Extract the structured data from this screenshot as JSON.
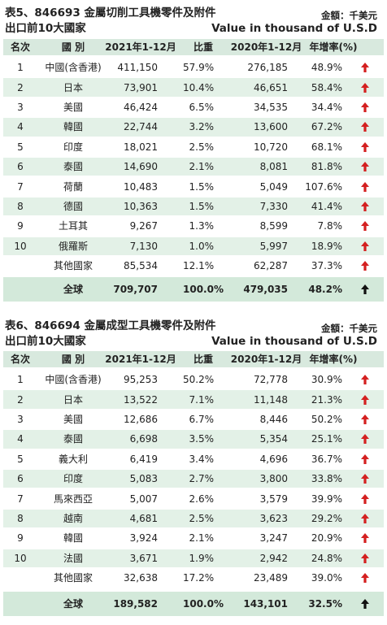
{
  "tables": [
    {
      "title": "表5、846693 金屬切削工具機零件及附件",
      "unit": "金額：千美元",
      "subtitle": "出口前10大國家",
      "unit_en": "Value in thousand of U.S.D",
      "columns": [
        "名次",
        "國 別",
        "2021年1-12月",
        "比重",
        "2020年1-12月",
        "年增率(%)"
      ],
      "rows": [
        {
          "rank": "1",
          "country": "中國(含香港)",
          "cells": [
            "411,150",
            "57.9%",
            "276,185",
            "48.9%"
          ]
        },
        {
          "rank": "2",
          "country": "日本",
          "cells": [
            "73,901",
            "10.4%",
            "46,651",
            "58.4%"
          ]
        },
        {
          "rank": "3",
          "country": "美國",
          "cells": [
            "46,424",
            "6.5%",
            "34,535",
            "34.4%"
          ]
        },
        {
          "rank": "4",
          "country": "韓國",
          "cells": [
            "22,744",
            "3.2%",
            "13,600",
            "67.2%"
          ]
        },
        {
          "rank": "5",
          "country": "印度",
          "cells": [
            "18,021",
            "2.5%",
            "10,720",
            "68.1%"
          ]
        },
        {
          "rank": "6",
          "country": "泰國",
          "cells": [
            "14,690",
            "2.1%",
            "8,081",
            "81.8%"
          ]
        },
        {
          "rank": "7",
          "country": "荷蘭",
          "cells": [
            "10,483",
            "1.5%",
            "5,049",
            "107.6%"
          ]
        },
        {
          "rank": "8",
          "country": "德國",
          "cells": [
            "10,363",
            "1.5%",
            "7,330",
            "41.4%"
          ]
        },
        {
          "rank": "9",
          "country": "土耳其",
          "cells": [
            "9,267",
            "1.3%",
            "8,599",
            "7.8%"
          ]
        },
        {
          "rank": "10",
          "country": "俄羅斯",
          "cells": [
            "7,130",
            "1.0%",
            "5,997",
            "18.9%"
          ]
        },
        {
          "country": "其他國家",
          "cells": [
            "85,534",
            "12.1%",
            "62,287",
            "37.3%"
          ]
        }
      ],
      "total": {
        "country": "全球",
        "cells": [
          "709,707",
          "100.0%",
          "479,035",
          "48.2%"
        ]
      }
    },
    {
      "title": "表6、846694 金屬成型工具機零件及附件",
      "unit": "金額：千美元",
      "subtitle": "出口前10大國家",
      "unit_en": "Value in thousand of U.S.D",
      "columns": [
        "名次",
        "國 別",
        "2021年1-12月",
        "比重",
        "2020年1-12月",
        "年增率(%)"
      ],
      "rows": [
        {
          "rank": "1",
          "country": "中國(含香港)",
          "cells": [
            "95,253",
            "50.2%",
            "72,778",
            "30.9%"
          ]
        },
        {
          "rank": "2",
          "country": "日本",
          "cells": [
            "13,522",
            "7.1%",
            "11,148",
            "21.3%"
          ]
        },
        {
          "rank": "3",
          "country": "美國",
          "cells": [
            "12,686",
            "6.7%",
            "8,446",
            "50.2%"
          ]
        },
        {
          "rank": "4",
          "country": "泰國",
          "cells": [
            "6,698",
            "3.5%",
            "5,354",
            "25.1%"
          ]
        },
        {
          "rank": "5",
          "country": "義大利",
          "cells": [
            "6,419",
            "3.4%",
            "4,696",
            "36.7%"
          ]
        },
        {
          "rank": "6",
          "country": "印度",
          "cells": [
            "5,083",
            "2.7%",
            "3,800",
            "33.8%"
          ]
        },
        {
          "rank": "7",
          "country": "馬來西亞",
          "cells": [
            "5,007",
            "2.6%",
            "3,579",
            "39.9%"
          ]
        },
        {
          "rank": "8",
          "country": "越南",
          "cells": [
            "4,681",
            "2.5%",
            "3,623",
            "29.2%"
          ]
        },
        {
          "rank": "9",
          "country": "韓國",
          "cells": [
            "3,924",
            "2.1%",
            "3,247",
            "20.9%"
          ]
        },
        {
          "rank": "10",
          "country": "法國",
          "cells": [
            "3,671",
            "1.9%",
            "2,942",
            "24.8%"
          ]
        },
        {
          "country": "其他國家",
          "cells": [
            "32,638",
            "17.2%",
            "23,489",
            "39.0%"
          ]
        }
      ],
      "total": {
        "country": "全球",
        "cells": [
          "189,582",
          "100.0%",
          "143,101",
          "32.5%"
        ]
      }
    }
  ]
}
